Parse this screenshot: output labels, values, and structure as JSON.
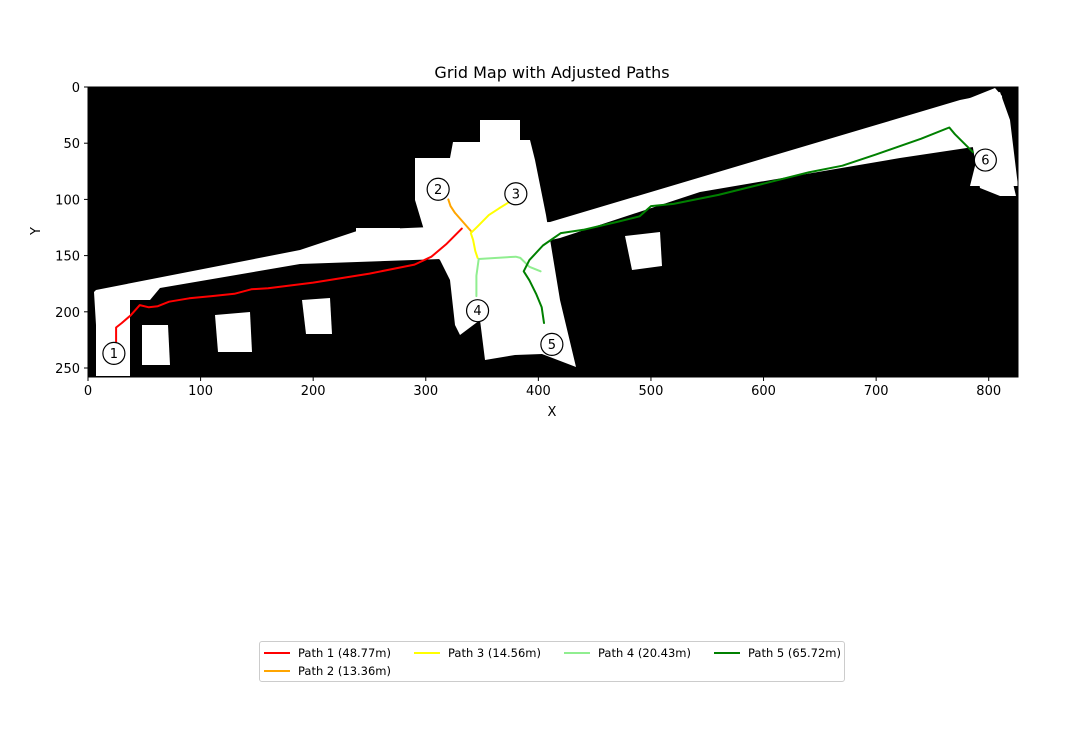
{
  "chart_data": {
    "type": "line",
    "title": "Grid Map with Adjusted Paths",
    "xlabel": "X",
    "ylabel": "Y",
    "xlim": [
      0,
      826
    ],
    "ylim": [
      258,
      0
    ],
    "y_inverted": true,
    "xticks": [
      0,
      100,
      200,
      300,
      400,
      500,
      600,
      700,
      800
    ],
    "yticks": [
      0,
      50,
      100,
      150,
      200,
      250
    ],
    "background": "occupancy grid map: white = free space, black = occupied/unknown",
    "series": [
      {
        "name": "Path 1 (48.77m)",
        "color": "#ff0000",
        "points": [
          [
            25,
            228
          ],
          [
            25,
            214
          ],
          [
            30,
            210
          ],
          [
            38,
            203
          ],
          [
            46,
            194
          ],
          [
            54,
            196
          ],
          [
            62,
            195
          ],
          [
            72,
            191
          ],
          [
            90,
            188
          ],
          [
            110,
            186
          ],
          [
            130,
            184
          ],
          [
            145,
            180
          ],
          [
            160,
            179
          ],
          [
            200,
            174
          ],
          [
            250,
            166
          ],
          [
            290,
            158
          ],
          [
            305,
            151
          ],
          [
            318,
            140
          ],
          [
            332,
            126
          ]
        ]
      },
      {
        "name": "Path 2 (13.36m)",
        "color": "#ffa500",
        "points": [
          [
            320,
            100
          ],
          [
            322,
            106
          ],
          [
            326,
            112
          ],
          [
            333,
            120
          ],
          [
            340,
            128
          ]
        ]
      },
      {
        "name": "Path 3 (14.56m)",
        "color": "#ffff00",
        "points": [
          [
            373,
            103
          ],
          [
            365,
            108
          ],
          [
            356,
            114
          ],
          [
            346,
            124
          ],
          [
            340,
            130
          ],
          [
            342,
            136
          ],
          [
            344,
            146
          ],
          [
            346,
            152
          ]
        ]
      },
      {
        "name": "Path 4 (20.43m)",
        "color": "#90ee90",
        "points": [
          [
            345,
            186
          ],
          [
            345,
            168
          ],
          [
            347,
            153
          ],
          [
            380,
            151
          ],
          [
            384,
            152
          ],
          [
            392,
            160
          ],
          [
            402,
            164
          ]
        ]
      },
      {
        "name": "Path 5 (65.72m)",
        "color": "#008000",
        "points": [
          [
            405,
            210
          ],
          [
            403,
            196
          ],
          [
            398,
            184
          ],
          [
            392,
            172
          ],
          [
            387,
            164
          ],
          [
            392,
            154
          ],
          [
            404,
            141
          ],
          [
            420,
            130
          ],
          [
            440,
            127
          ],
          [
            470,
            120
          ],
          [
            490,
            115
          ],
          [
            500,
            106
          ],
          [
            520,
            104
          ],
          [
            560,
            96
          ],
          [
            600,
            86
          ],
          [
            640,
            76
          ],
          [
            670,
            70
          ],
          [
            700,
            60
          ],
          [
            740,
            46
          ],
          [
            765,
            36
          ],
          [
            770,
            42
          ],
          [
            780,
            52
          ],
          [
            786,
            58
          ]
        ]
      }
    ],
    "markers": [
      {
        "label": "1",
        "x": 23,
        "y": 237
      },
      {
        "label": "2",
        "x": 311,
        "y": 91
      },
      {
        "label": "3",
        "x": 380,
        "y": 95
      },
      {
        "label": "4",
        "x": 346,
        "y": 199
      },
      {
        "label": "5",
        "x": 412,
        "y": 229
      },
      {
        "label": "6",
        "x": 797,
        "y": 65
      }
    ],
    "legend_position": "bottom-center"
  }
}
